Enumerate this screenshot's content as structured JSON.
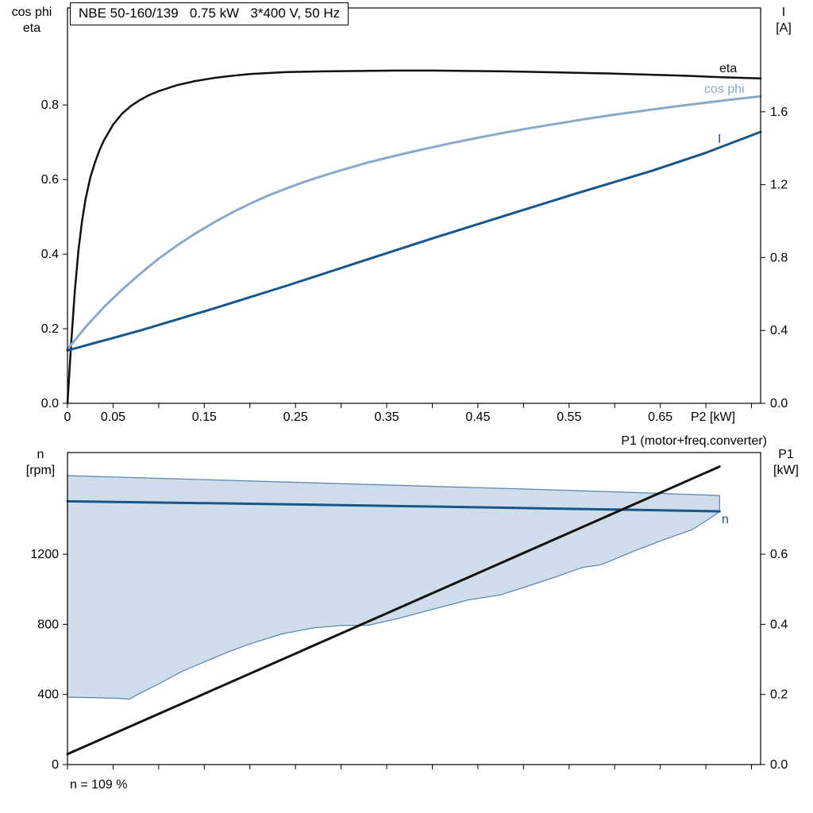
{
  "colors": {
    "eta": "#111111",
    "cos_phi": "#8aa8c8",
    "current": "#17558a",
    "speed": "#17558a",
    "p1": "#111111",
    "envelope_fill": "#cfdce9",
    "envelope_stroke": "#5a83ad",
    "frame": "#000000"
  },
  "chart_data": [
    {
      "type": "line",
      "title": "NBE 50-160/139   0.75 kW   3*400 V, 50 Hz",
      "x_axis": {
        "label": "P2 [kW]",
        "min": 0,
        "max": 0.76,
        "minor_step": 0.05,
        "ticks": [
          {
            "v": 0,
            "label": "0"
          },
          {
            "v": 0.05,
            "label": "0.05"
          },
          {
            "v": 0.15,
            "label": "0.15"
          },
          {
            "v": 0.25,
            "label": "0.25"
          },
          {
            "v": 0.35,
            "label": "0.35"
          },
          {
            "v": 0.45,
            "label": "0.45"
          },
          {
            "v": 0.55,
            "label": "0.55"
          },
          {
            "v": 0.65,
            "label": "0.65"
          }
        ]
      },
      "y_left": {
        "label_lines": [
          "cos phi",
          "eta"
        ],
        "min": 0,
        "max": 1.06,
        "ticks": [
          {
            "v": 0,
            "label": "0.0"
          },
          {
            "v": 0.2,
            "label": "0.2"
          },
          {
            "v": 0.4,
            "label": "0.4"
          },
          {
            "v": 0.6,
            "label": "0.6"
          },
          {
            "v": 0.8,
            "label": "0.8"
          }
        ]
      },
      "y_right": {
        "label_lines": [
          "I",
          "[A]"
        ],
        "min": 0,
        "max": 2.17,
        "ticks": [
          {
            "v": 0,
            "label": "0.0"
          },
          {
            "v": 0.4,
            "label": "0.4"
          },
          {
            "v": 0.8,
            "label": "0.8"
          },
          {
            "v": 1.2,
            "label": "1.2"
          },
          {
            "v": 1.6,
            "label": "1.6"
          }
        ]
      },
      "series": [
        {
          "name": "eta",
          "label": "eta",
          "axis": "left",
          "color": "#111111",
          "width": 2.5,
          "points": [
            [
              0,
              0
            ],
            [
              0.004,
              0.16
            ],
            [
              0.008,
              0.3
            ],
            [
              0.012,
              0.41
            ],
            [
              0.016,
              0.49
            ],
            [
              0.02,
              0.55
            ],
            [
              0.025,
              0.605
            ],
            [
              0.03,
              0.645
            ],
            [
              0.035,
              0.678
            ],
            [
              0.04,
              0.705
            ],
            [
              0.05,
              0.747
            ],
            [
              0.06,
              0.777
            ],
            [
              0.07,
              0.798
            ],
            [
              0.08,
              0.814
            ],
            [
              0.09,
              0.827
            ],
            [
              0.1,
              0.837
            ],
            [
              0.12,
              0.853
            ],
            [
              0.14,
              0.864
            ],
            [
              0.16,
              0.872
            ],
            [
              0.18,
              0.878
            ],
            [
              0.2,
              0.883
            ],
            [
              0.24,
              0.888
            ],
            [
              0.28,
              0.89
            ],
            [
              0.32,
              0.891
            ],
            [
              0.36,
              0.892
            ],
            [
              0.4,
              0.892
            ],
            [
              0.44,
              0.891
            ],
            [
              0.48,
              0.89
            ],
            [
              0.52,
              0.888
            ],
            [
              0.56,
              0.886
            ],
            [
              0.6,
              0.884
            ],
            [
              0.64,
              0.881
            ],
            [
              0.68,
              0.878
            ],
            [
              0.72,
              0.874
            ],
            [
              0.76,
              0.871
            ]
          ]
        },
        {
          "name": "cos-phi",
          "label": "cos phi",
          "axis": "left",
          "color": "#8aa8c8",
          "width": 3,
          "points": [
            [
              0,
              0.145
            ],
            [
              0.02,
              0.205
            ],
            [
              0.04,
              0.258
            ],
            [
              0.06,
              0.305
            ],
            [
              0.08,
              0.348
            ],
            [
              0.1,
              0.388
            ],
            [
              0.12,
              0.423
            ],
            [
              0.14,
              0.455
            ],
            [
              0.16,
              0.484
            ],
            [
              0.18,
              0.511
            ],
            [
              0.2,
              0.535
            ],
            [
              0.22,
              0.557
            ],
            [
              0.24,
              0.576
            ],
            [
              0.26,
              0.594
            ],
            [
              0.28,
              0.61
            ],
            [
              0.3,
              0.625
            ],
            [
              0.33,
              0.646
            ],
            [
              0.36,
              0.664
            ],
            [
              0.39,
              0.681
            ],
            [
              0.42,
              0.697
            ],
            [
              0.45,
              0.712
            ],
            [
              0.48,
              0.726
            ],
            [
              0.51,
              0.739
            ],
            [
              0.54,
              0.751
            ],
            [
              0.57,
              0.763
            ],
            [
              0.6,
              0.774
            ],
            [
              0.63,
              0.784
            ],
            [
              0.66,
              0.794
            ],
            [
              0.69,
              0.803
            ],
            [
              0.72,
              0.812
            ],
            [
              0.76,
              0.823
            ]
          ]
        },
        {
          "name": "current",
          "label": "I",
          "axis": "right",
          "color": "#17558a",
          "width": 3,
          "points": [
            [
              0,
              0.29
            ],
            [
              0.08,
              0.4
            ],
            [
              0.16,
              0.52
            ],
            [
              0.24,
              0.645
            ],
            [
              0.32,
              0.775
            ],
            [
              0.4,
              0.905
            ],
            [
              0.48,
              1.03
            ],
            [
              0.56,
              1.155
            ],
            [
              0.64,
              1.275
            ],
            [
              0.7,
              1.375
            ],
            [
              0.76,
              1.49
            ]
          ]
        }
      ]
    },
    {
      "type": "line",
      "annotation": "n = 109 %",
      "x_axis": {
        "min": 0,
        "max": 0.76,
        "minor_step": 0.05,
        "ticks": []
      },
      "y_left": {
        "label_lines": [
          "n",
          "[rpm]"
        ],
        "min": 0,
        "max": 1780,
        "ticks": [
          {
            "v": 0,
            "label": "0"
          },
          {
            "v": 400,
            "label": "400"
          },
          {
            "v": 800,
            "label": "800"
          },
          {
            "v": 1200,
            "label": "1200"
          }
        ]
      },
      "y_right": {
        "label_lines": [
          "P1",
          "[kW]"
        ],
        "min": 0,
        "max": 0.89,
        "ticks": [
          {
            "v": 0,
            "label": "0.0"
          },
          {
            "v": 0.2,
            "label": "0.2"
          },
          {
            "v": 0.4,
            "label": "0.4"
          },
          {
            "v": 0.6,
            "label": "0.6"
          }
        ]
      },
      "envelope": {
        "name": "speed-operating-range",
        "fill": "#cfdce9",
        "stroke": "#5a83ad",
        "upper": [
          [
            0,
            1648
          ],
          [
            0.12,
            1630
          ],
          [
            0.25,
            1610
          ],
          [
            0.38,
            1590
          ],
          [
            0.5,
            1572
          ],
          [
            0.6,
            1556
          ],
          [
            0.715,
            1535
          ]
        ],
        "lower": [
          [
            0,
            385
          ],
          [
            0.055,
            378
          ],
          [
            0.068,
            373
          ],
          [
            0.075,
            395
          ],
          [
            0.1,
            460
          ],
          [
            0.125,
            530
          ],
          [
            0.15,
            585
          ],
          [
            0.175,
            640
          ],
          [
            0.2,
            688
          ],
          [
            0.235,
            745
          ],
          [
            0.27,
            780
          ],
          [
            0.3,
            793
          ],
          [
            0.33,
            795
          ],
          [
            0.36,
            830
          ],
          [
            0.4,
            885
          ],
          [
            0.44,
            940
          ],
          [
            0.475,
            968
          ],
          [
            0.5,
            1010
          ],
          [
            0.535,
            1070
          ],
          [
            0.565,
            1125
          ],
          [
            0.585,
            1140
          ],
          [
            0.62,
            1215
          ],
          [
            0.655,
            1285
          ],
          [
            0.685,
            1340
          ],
          [
            0.7,
            1390
          ],
          [
            0.715,
            1442
          ]
        ]
      },
      "series": [
        {
          "name": "n",
          "label": "n",
          "axis": "left",
          "color": "#17558a",
          "width": 3,
          "points": [
            [
              0,
              1502
            ],
            [
              0.2,
              1488
            ],
            [
              0.4,
              1472
            ],
            [
              0.6,
              1455
            ],
            [
              0.715,
              1445
            ]
          ]
        },
        {
          "name": "p1",
          "label": "P1 (motor+freq.converter)",
          "axis": "right",
          "color": "#111111",
          "width": 3,
          "points": [
            [
              0,
              0.03
            ],
            [
              0.715,
              0.85
            ]
          ]
        }
      ]
    }
  ]
}
